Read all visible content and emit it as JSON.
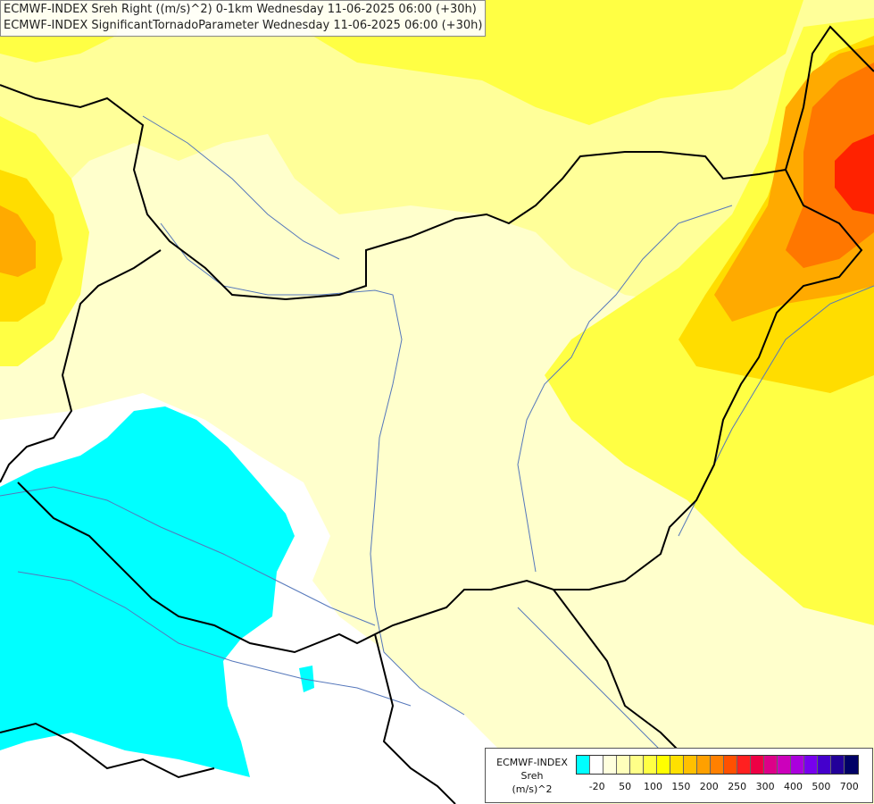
{
  "header": {
    "line1": "ECMWF-INDEX Sreh Right ((m/s)^2) 0-1km Wednesday 11-06-2025 06:00 (+30h)",
    "line2": "ECMWF-INDEX SignificantTornadoParameter Wednesday 11-06-2025 06:00 (+30h)"
  },
  "legend": {
    "source": "ECMWF-INDEX",
    "parameter": "Sreh",
    "unit": "(m/s)^2",
    "colors": [
      "#00ffff",
      "#ffffff",
      "#ffffdd",
      "#ffffbb",
      "#ffff88",
      "#ffff44",
      "#ffff00",
      "#ffe000",
      "#ffc000",
      "#ffa000",
      "#ff8000",
      "#ff5000",
      "#ff2020",
      "#ee0044",
      "#dd0088",
      "#cc00bb",
      "#aa00dd",
      "#7700ee",
      "#4400cc",
      "#220099",
      "#000066"
    ],
    "ticks": [
      {
        "label": "-20",
        "idx": 1
      },
      {
        "label": "50",
        "idx": 3
      },
      {
        "label": "100",
        "idx": 5
      },
      {
        "label": "150",
        "idx": 7
      },
      {
        "label": "200",
        "idx": 9
      },
      {
        "label": "250",
        "idx": 11
      },
      {
        "label": "300",
        "idx": 13
      },
      {
        "label": "400",
        "idx": 15
      },
      {
        "label": "500",
        "idx": 17
      },
      {
        "label": "700",
        "idx": 19
      }
    ]
  },
  "map_colors": {
    "negative": "#00ffff",
    "neutral": "#ffffff",
    "pale": "#ffffcc",
    "light": "#ffff99",
    "yellow": "#ffff44",
    "gold": "#ffdd00",
    "orange": "#ffaa00",
    "dark_orange": "#ff7700",
    "red": "#ff2200",
    "border": "#000000",
    "river": "#5577bb"
  }
}
